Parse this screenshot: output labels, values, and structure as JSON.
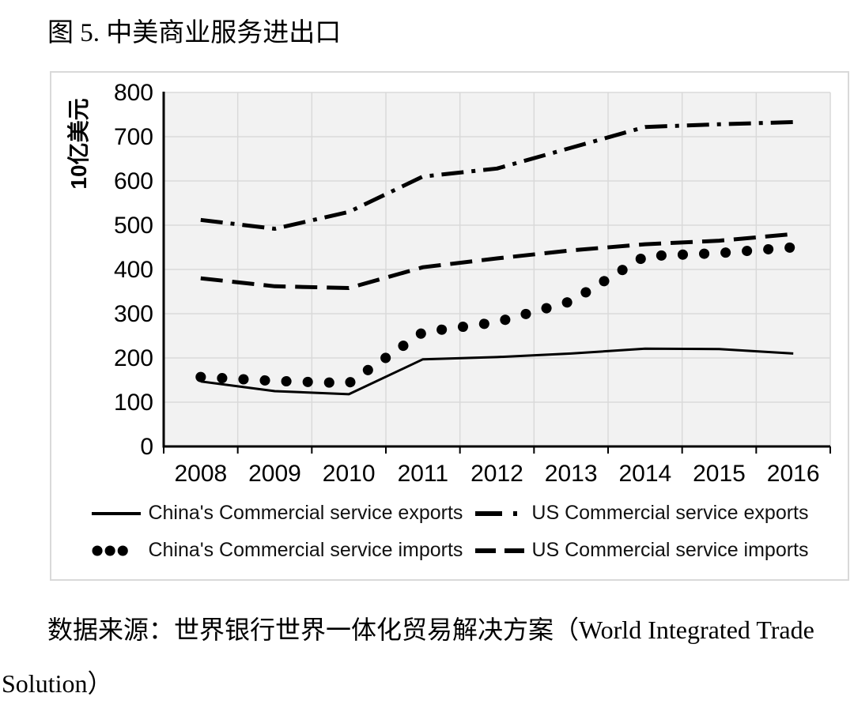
{
  "title": "图 5. 中美商业服务进出口",
  "source_note": {
    "line1": "数据来源：世界银行世界一体化贸易解决方案（World Integrated Trade",
    "line2": "Solution）"
  },
  "chart_data": {
    "type": "line",
    "title": "图 5. 中美商业服务进出口",
    "ylabel": "10亿美元",
    "xlabel": "",
    "x": [
      2008,
      2009,
      2010,
      2011,
      2012,
      2013,
      2014,
      2015,
      2016
    ],
    "ylim": [
      0,
      800
    ],
    "ytick_step": 100,
    "grid": true,
    "legend_position": "bottom",
    "line_color": "#000000",
    "plot_bg": "#f2f2f2",
    "grid_color": "#d9d9d9",
    "series": [
      {
        "name": "China's Commercial service exports",
        "dash": "solid",
        "values": [
          147,
          125,
          118,
          197,
          202,
          210,
          221,
          220,
          210
        ]
      },
      {
        "name": "US Commercial service exports",
        "dash": "dashdot",
        "values": [
          512,
          492,
          530,
          610,
          628,
          675,
          722,
          728,
          733
        ]
      },
      {
        "name": "China's Commercial service imports",
        "dash": "dotted",
        "values": [
          157,
          148,
          143,
          258,
          281,
          328,
          430,
          437,
          450
        ]
      },
      {
        "name": "US Commercial service imports",
        "dash": "dashed",
        "values": [
          380,
          362,
          358,
          405,
          425,
          443,
          457,
          465,
          480
        ]
      }
    ]
  }
}
